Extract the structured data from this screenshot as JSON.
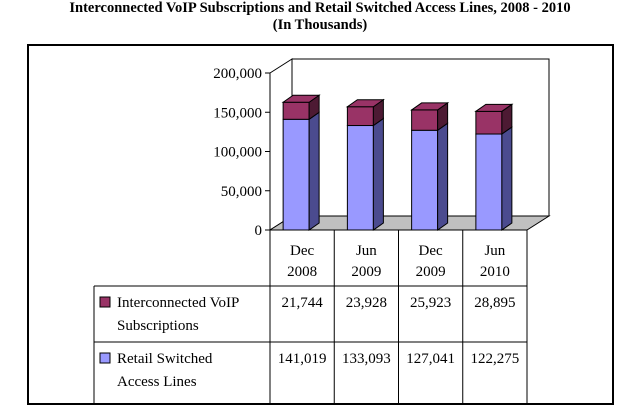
{
  "title": "Interconnected VoIP Subscriptions and Retail Switched Access Lines, 2008 - 2010",
  "subtitle": "(In Thousands)",
  "chart_data": {
    "type": "bar",
    "stacked": true,
    "three_d": true,
    "categories": [
      [
        "Dec",
        "2008"
      ],
      [
        "Jun",
        "2009"
      ],
      [
        "Dec",
        "2009"
      ],
      [
        "Jun",
        "2010"
      ]
    ],
    "series": [
      {
        "name": "Retail Switched Access Lines",
        "name_lines": [
          "Retail Switched",
          "Access Lines"
        ],
        "values": [
          141019,
          133093,
          127041,
          122275
        ],
        "labels": [
          "141,019",
          "133,093",
          "127,041",
          "122,275"
        ],
        "color": "#9999ff",
        "side_color": "#4b4b8f"
      },
      {
        "name": "Interconnected VoIP Subscriptions",
        "name_lines": [
          "Interconnected VoIP",
          "Subscriptions"
        ],
        "values": [
          21744,
          23928,
          25923,
          28895
        ],
        "labels": [
          "21,744",
          "23,928",
          "25,923",
          "28,895"
        ],
        "color": "#993366",
        "side_color": "#4d1a33"
      }
    ],
    "ylim": [
      0,
      200000
    ],
    "yticks": [
      0,
      50000,
      100000,
      150000,
      200000
    ],
    "ytick_labels": [
      "0",
      "50,000",
      "100,000",
      "150,000",
      "200,000"
    ],
    "legend": "data-table",
    "grid": false,
    "wall_color": "#ffffff",
    "floor_color": "#c0c0c0"
  }
}
